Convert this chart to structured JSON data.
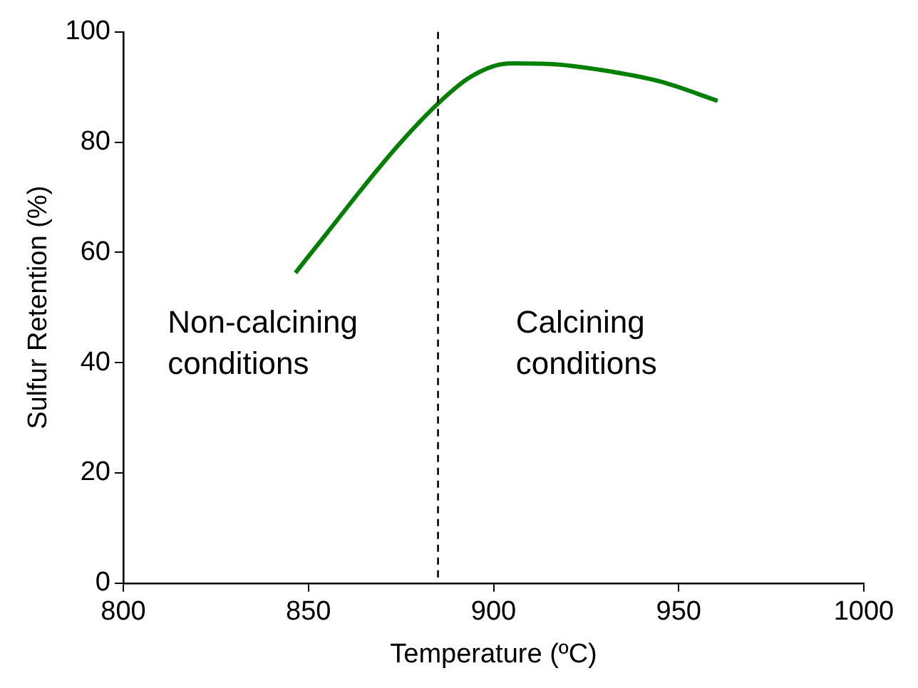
{
  "chart_data": {
    "type": "line",
    "xlabel": "Temperature (ºC)",
    "ylabel": "Sulfur Retention (%)",
    "x": [
      846.5,
      855,
      865,
      875,
      885,
      893,
      900,
      905,
      915,
      930,
      945,
      960.5
    ],
    "series": [
      {
        "color": "#008000",
        "values": [
          56.3,
          63.5,
          72,
          80,
          87,
          91.5,
          93.8,
          94.3,
          94.2,
          93,
          91,
          87.5
        ]
      }
    ],
    "xlim": [
      800,
      1000
    ],
    "xticks": [
      800,
      850,
      900,
      950,
      1000
    ],
    "ylim": [
      0,
      100
    ],
    "yticks": [
      0,
      20,
      40,
      60,
      80,
      100
    ],
    "ref_lines": [
      {
        "axis": "x",
        "value": 885,
        "line_style": "dashed",
        "color": "#000000"
      }
    ],
    "annotations": [
      "Non-calcining\nconditions",
      "Calcining\nconditions"
    ],
    "grid": false,
    "legend": false,
    "marker": "none",
    "line_style": "solid"
  }
}
